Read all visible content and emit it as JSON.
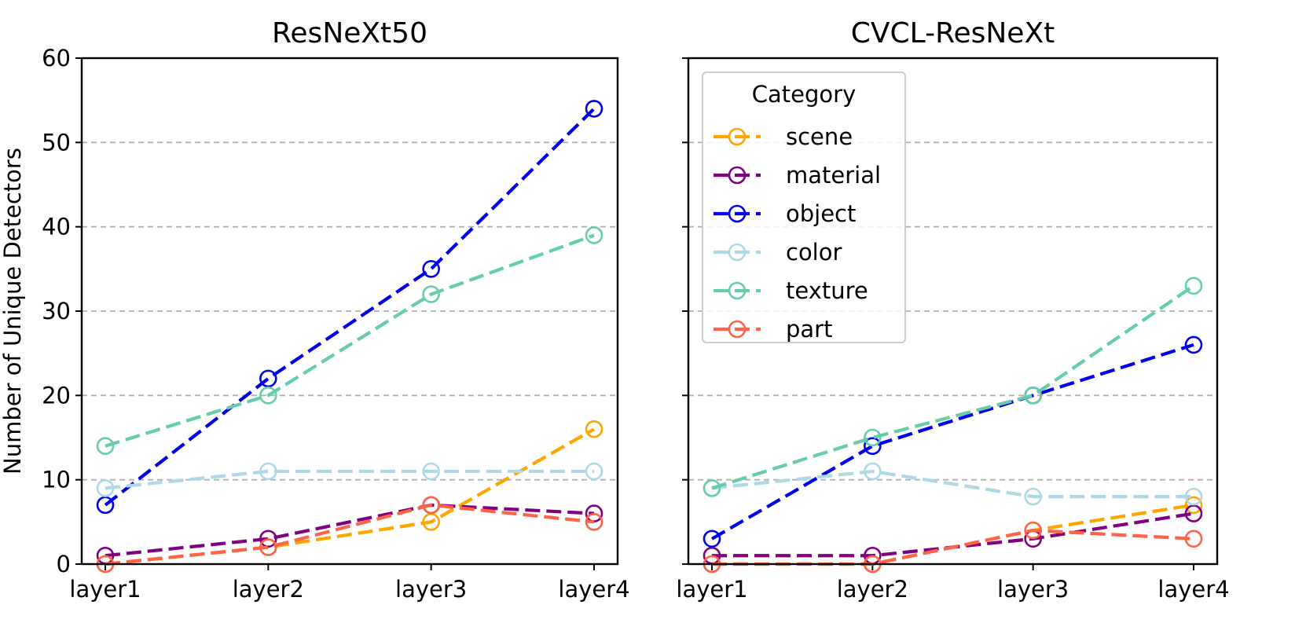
{
  "chart_data": [
    {
      "type": "line",
      "title": "ResNeXt50",
      "ylabel": "Number of Unique Detectors",
      "categories": [
        "layer1",
        "layer2",
        "layer3",
        "layer4"
      ],
      "ylim": [
        0,
        60
      ],
      "yticks": [
        0,
        10,
        20,
        30,
        40,
        50,
        60
      ],
      "grid": "horizontal dashed",
      "series": [
        {
          "name": "scene",
          "color": "#FFA500",
          "values": [
            0,
            2,
            5,
            16
          ]
        },
        {
          "name": "material",
          "color": "#800080",
          "values": [
            1,
            3,
            7,
            6
          ]
        },
        {
          "name": "object",
          "color": "#0000EE",
          "values": [
            7,
            22,
            35,
            54
          ]
        },
        {
          "name": "color",
          "color": "#ADD8E6",
          "values": [
            9,
            11,
            11,
            11
          ]
        },
        {
          "name": "texture",
          "color": "#66CDAA",
          "values": [
            14,
            20,
            32,
            39
          ]
        },
        {
          "name": "part",
          "color": "#FF6347",
          "values": [
            0,
            2,
            7,
            5
          ]
        }
      ]
    },
    {
      "type": "line",
      "title": "CVCL-ResNeXt",
      "categories": [
        "layer1",
        "layer2",
        "layer3",
        "layer4"
      ],
      "ylim": [
        0,
        60
      ],
      "grid": "horizontal dashed",
      "legend": {
        "title": "Category",
        "placement": "top-left"
      },
      "series": [
        {
          "name": "scene",
          "color": "#FFA500",
          "values": [
            0,
            0,
            4,
            7
          ]
        },
        {
          "name": "material",
          "color": "#800080",
          "values": [
            1,
            1,
            3,
            6
          ]
        },
        {
          "name": "object",
          "color": "#0000EE",
          "values": [
            3,
            14,
            20,
            26
          ]
        },
        {
          "name": "color",
          "color": "#ADD8E6",
          "values": [
            9,
            11,
            8,
            8
          ]
        },
        {
          "name": "texture",
          "color": "#66CDAA",
          "values": [
            9,
            15,
            20,
            33
          ]
        },
        {
          "name": "part",
          "color": "#FF6347",
          "values": [
            0,
            0,
            4,
            3
          ]
        }
      ]
    }
  ]
}
